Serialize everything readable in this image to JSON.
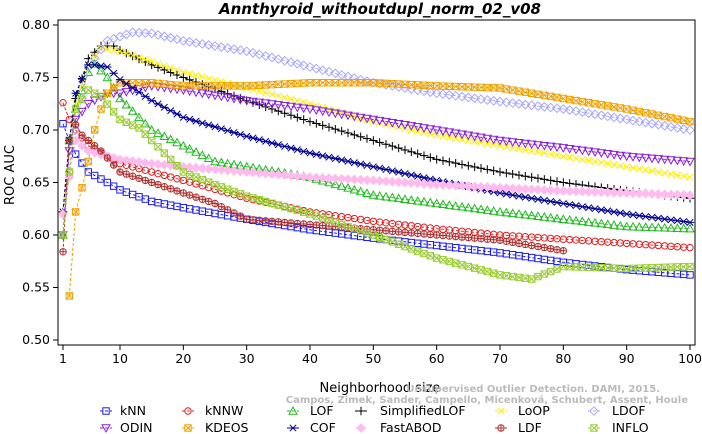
{
  "chart_data": {
    "type": "line",
    "title": "Annthyroid_withoutdupl_norm_02_v08",
    "xlabel": "Neighborhood size",
    "ylabel": "ROC AUC",
    "xlim": [
      1,
      100
    ],
    "ylim": [
      0.5,
      0.8
    ],
    "xticks": [
      1,
      10,
      20,
      30,
      40,
      50,
      60,
      70,
      80,
      90,
      100
    ],
    "yticks": [
      0.5,
      0.55,
      0.6,
      0.65,
      0.7,
      0.75,
      0.8
    ],
    "ytick_labels": [
      "0.50",
      "0.55",
      "0.60",
      "0.65",
      "0.70",
      "0.75",
      "0.80"
    ],
    "grid": false,
    "legend_placement": "bottom",
    "series": [
      {
        "name": "kNN",
        "color": "#1a1aff",
        "marker": "square",
        "points": [
          [
            1,
            0.706
          ],
          [
            2,
            0.69
          ],
          [
            3,
            0.677
          ],
          [
            5,
            0.66
          ],
          [
            8,
            0.65
          ],
          [
            10,
            0.643
          ],
          [
            15,
            0.632
          ],
          [
            20,
            0.626
          ],
          [
            30,
            0.615
          ],
          [
            40,
            0.605
          ],
          [
            50,
            0.597
          ],
          [
            60,
            0.59
          ],
          [
            70,
            0.583
          ],
          [
            80,
            0.574
          ],
          [
            90,
            0.567
          ],
          [
            100,
            0.562
          ]
        ]
      },
      {
        "name": "kNNW",
        "color": "#e02020",
        "marker": "circle",
        "points": [
          [
            1,
            0.726
          ],
          [
            2,
            0.71
          ],
          [
            3,
            0.7
          ],
          [
            5,
            0.685
          ],
          [
            8,
            0.675
          ],
          [
            10,
            0.668
          ],
          [
            15,
            0.66
          ],
          [
            20,
            0.652
          ],
          [
            30,
            0.635
          ],
          [
            40,
            0.622
          ],
          [
            50,
            0.613
          ],
          [
            60,
            0.606
          ],
          [
            70,
            0.6
          ],
          [
            80,
            0.596
          ],
          [
            90,
            0.592
          ],
          [
            100,
            0.588
          ]
        ]
      },
      {
        "name": "LOF",
        "color": "#22bb22",
        "marker": "triangle",
        "points": [
          [
            1,
            0.6
          ],
          [
            2,
            0.69
          ],
          [
            3,
            0.72
          ],
          [
            5,
            0.755
          ],
          [
            6,
            0.763
          ],
          [
            8,
            0.75
          ],
          [
            10,
            0.73
          ],
          [
            15,
            0.7
          ],
          [
            20,
            0.685
          ],
          [
            25,
            0.67
          ],
          [
            30,
            0.665
          ],
          [
            40,
            0.655
          ],
          [
            50,
            0.638
          ],
          [
            60,
            0.63
          ],
          [
            70,
            0.622
          ],
          [
            80,
            0.615
          ],
          [
            90,
            0.608
          ],
          [
            100,
            0.606
          ]
        ]
      },
      {
        "name": "SimplifiedLOF",
        "color": "#000000",
        "marker": "plus",
        "points": [
          [
            1,
            0.622
          ],
          [
            2,
            0.69
          ],
          [
            3,
            0.73
          ],
          [
            5,
            0.768
          ],
          [
            7,
            0.78
          ],
          [
            9,
            0.78
          ],
          [
            10,
            0.776
          ],
          [
            15,
            0.762
          ],
          [
            20,
            0.75
          ],
          [
            30,
            0.728
          ],
          [
            40,
            0.708
          ],
          [
            50,
            0.69
          ],
          [
            60,
            0.672
          ],
          [
            70,
            0.66
          ],
          [
            80,
            0.65
          ],
          [
            90,
            0.642
          ],
          [
            100,
            0.635
          ]
        ]
      },
      {
        "name": "LoOP",
        "color": "#ffee00",
        "marker": "cross",
        "points": [
          [
            1,
            0.62
          ],
          [
            2,
            0.69
          ],
          [
            3,
            0.725
          ],
          [
            5,
            0.762
          ],
          [
            7,
            0.778
          ],
          [
            10,
            0.775
          ],
          [
            15,
            0.765
          ],
          [
            20,
            0.755
          ],
          [
            30,
            0.74
          ],
          [
            40,
            0.725
          ],
          [
            50,
            0.708
          ],
          [
            60,
            0.695
          ],
          [
            70,
            0.685
          ],
          [
            80,
            0.675
          ],
          [
            90,
            0.665
          ],
          [
            100,
            0.655
          ]
        ]
      },
      {
        "name": "LDOF",
        "color": "#a8a8ff",
        "marker": "diamond",
        "points": [
          [
            1,
            0.62
          ],
          [
            3,
            0.7
          ],
          [
            5,
            0.76
          ],
          [
            8,
            0.785
          ],
          [
            12,
            0.793
          ],
          [
            15,
            0.792
          ],
          [
            20,
            0.785
          ],
          [
            30,
            0.775
          ],
          [
            40,
            0.76
          ],
          [
            50,
            0.745
          ],
          [
            60,
            0.735
          ],
          [
            70,
            0.727
          ],
          [
            80,
            0.72
          ],
          [
            90,
            0.71
          ],
          [
            100,
            0.7
          ]
        ]
      },
      {
        "name": "ODIN",
        "color": "#8a20e0",
        "marker": "triangle-down",
        "points": [
          [
            1,
            0.6
          ],
          [
            2,
            0.68
          ],
          [
            3,
            0.71
          ],
          [
            5,
            0.725
          ],
          [
            8,
            0.735
          ],
          [
            10,
            0.735
          ],
          [
            15,
            0.742
          ],
          [
            20,
            0.738
          ],
          [
            30,
            0.728
          ],
          [
            40,
            0.72
          ],
          [
            50,
            0.71
          ],
          [
            60,
            0.7
          ],
          [
            70,
            0.69
          ],
          [
            80,
            0.683
          ],
          [
            90,
            0.675
          ],
          [
            100,
            0.67
          ]
        ]
      },
      {
        "name": "KDEOS",
        "color": "#f0a000",
        "marker": "square-x",
        "points": [
          [
            2,
            0.542
          ],
          [
            3,
            0.622
          ],
          [
            4,
            0.645
          ],
          [
            5,
            0.67
          ],
          [
            6,
            0.7
          ],
          [
            7,
            0.72
          ],
          [
            8,
            0.735
          ],
          [
            10,
            0.745
          ],
          [
            15,
            0.745
          ],
          [
            20,
            0.742
          ],
          [
            30,
            0.742
          ],
          [
            40,
            0.745
          ],
          [
            50,
            0.745
          ],
          [
            60,
            0.742
          ],
          [
            70,
            0.74
          ],
          [
            80,
            0.73
          ],
          [
            90,
            0.72
          ],
          [
            100,
            0.708
          ]
        ]
      },
      {
        "name": "COF",
        "color": "#000090",
        "marker": "star",
        "points": [
          [
            1,
            0.622
          ],
          [
            2,
            0.69
          ],
          [
            3,
            0.735
          ],
          [
            5,
            0.762
          ],
          [
            6,
            0.762
          ],
          [
            8,
            0.76
          ],
          [
            10,
            0.748
          ],
          [
            15,
            0.728
          ],
          [
            20,
            0.712
          ],
          [
            30,
            0.694
          ],
          [
            40,
            0.678
          ],
          [
            50,
            0.665
          ],
          [
            60,
            0.652
          ],
          [
            70,
            0.64
          ],
          [
            80,
            0.63
          ],
          [
            90,
            0.62
          ],
          [
            100,
            0.612
          ]
        ]
      },
      {
        "name": "FastABOD",
        "color": "#ffbbee",
        "marker": "diamond-filled",
        "points": [
          [
            1,
            0.62
          ],
          [
            3,
            0.69
          ],
          [
            5,
            0.68
          ],
          [
            8,
            0.675
          ],
          [
            10,
            0.672
          ],
          [
            15,
            0.668
          ],
          [
            20,
            0.665
          ],
          [
            30,
            0.66
          ],
          [
            40,
            0.655
          ],
          [
            50,
            0.652
          ],
          [
            60,
            0.648
          ],
          [
            70,
            0.645
          ],
          [
            80,
            0.642
          ],
          [
            90,
            0.64
          ],
          [
            100,
            0.638
          ]
        ]
      },
      {
        "name": "LDF",
        "color": "#b03030",
        "marker": "circle-plus",
        "points": [
          [
            1,
            0.584
          ],
          [
            2,
            0.69
          ],
          [
            3,
            0.705
          ],
          [
            4,
            0.695
          ],
          [
            5,
            0.69
          ],
          [
            7,
            0.68
          ],
          [
            10,
            0.66
          ],
          [
            15,
            0.65
          ],
          [
            20,
            0.64
          ],
          [
            25,
            0.63
          ],
          [
            30,
            0.615
          ],
          [
            40,
            0.61
          ],
          [
            50,
            0.605
          ],
          [
            60,
            0.6
          ],
          [
            70,
            0.595
          ],
          [
            80,
            0.585
          ]
        ]
      },
      {
        "name": "INFLO",
        "color": "#99cc33",
        "marker": "square-x",
        "points": [
          [
            1,
            0.6
          ],
          [
            3,
            0.72
          ],
          [
            5,
            0.738
          ],
          [
            7,
            0.732
          ],
          [
            10,
            0.71
          ],
          [
            13,
            0.702
          ],
          [
            15,
            0.69
          ],
          [
            20,
            0.66
          ],
          [
            25,
            0.648
          ],
          [
            30,
            0.637
          ],
          [
            40,
            0.62
          ],
          [
            50,
            0.6
          ],
          [
            60,
            0.578
          ],
          [
            70,
            0.562
          ],
          [
            75,
            0.558
          ],
          [
            80,
            0.57
          ],
          [
            90,
            0.568
          ],
          [
            100,
            0.57
          ]
        ]
      }
    ]
  },
  "watermark": {
    "line1": "Unsupervised Outlier Detection. DAMI, 2015.",
    "line2": "Campos, Zimek, Sander, Campello, Micenková, Schubert, Assent, Houle"
  }
}
